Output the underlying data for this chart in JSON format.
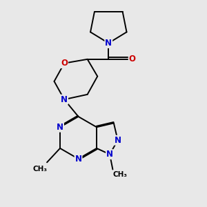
{
  "bg_color": "#e8e8e8",
  "bond_color": "#000000",
  "N_color": "#0000cc",
  "O_color": "#cc0000",
  "font_size_atom": 8.5,
  "font_size_methyl": 7.5,
  "line_width": 1.4,
  "xlim": [
    0,
    10
  ],
  "ylim": [
    0,
    10
  ]
}
